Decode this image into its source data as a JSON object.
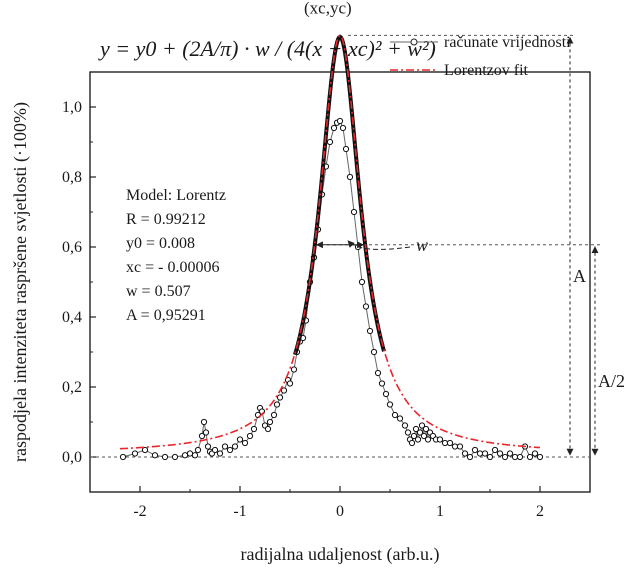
{
  "chart_data": {
    "type": "scatter",
    "formula": "y = y0 + (2A/π) · w / (4(x − xc)² + w²)",
    "xlabel": "radijalna udaljenost (arb.u.)",
    "ylabel": "raspodjela intenziteta raspršene svjetlosti (·100%)",
    "xlim": [
      -2.5,
      2.5
    ],
    "ylim": [
      -0.1,
      1.1
    ],
    "x_ticks": [
      "-2",
      "-1",
      "0",
      "1",
      "2"
    ],
    "y_ticks": [
      "0,0",
      "0,2",
      "0,4",
      "0,6",
      "0,8",
      "1,0"
    ],
    "legend": {
      "position": "top-right",
      "entries": [
        "računate vrijednosti",
        "Lorentzov fit"
      ]
    },
    "model_box": {
      "title": "Model: Lorentz",
      "R": "R = 0.99212",
      "y0": "y0 = 0.008",
      "xc": "xc = - 0.00006",
      "w": "w = 0.507",
      "A": "A = 0,95291"
    },
    "fit": {
      "y0": 0.008,
      "xc": -6e-05,
      "w": 0.507,
      "A": 0.95291
    },
    "annotations": {
      "peak": "(xc,yc)",
      "width": "w",
      "amplitude": "A",
      "half_amplitude": "A/2"
    },
    "series": [
      {
        "name": "računate vrijednosti",
        "color": "#333333",
        "x": [
          -2.17,
          -2.05,
          -1.95,
          -1.85,
          -1.75,
          -1.65,
          -1.55,
          -1.5,
          -1.45,
          -1.42,
          -1.38,
          -1.36,
          -1.34,
          -1.32,
          -1.3,
          -1.28,
          -1.25,
          -1.2,
          -1.15,
          -1.1,
          -1.05,
          -1.0,
          -0.95,
          -0.9,
          -0.86,
          -0.82,
          -0.8,
          -0.78,
          -0.75,
          -0.72,
          -0.7,
          -0.66,
          -0.63,
          -0.6,
          -0.56,
          -0.52,
          -0.5,
          -0.46,
          -0.43,
          -0.4,
          -0.37,
          -0.34,
          -0.3,
          -0.26,
          -0.22,
          -0.18,
          -0.14,
          -0.1,
          -0.06,
          -0.03,
          0.0,
          0.03,
          0.06,
          0.1,
          0.14,
          0.18,
          0.22,
          0.26,
          0.3,
          0.34,
          0.38,
          0.42,
          0.46,
          0.5,
          0.55,
          0.6,
          0.65,
          0.68,
          0.7,
          0.72,
          0.74,
          0.76,
          0.78,
          0.8,
          0.82,
          0.84,
          0.86,
          0.88,
          0.9,
          0.93,
          0.96,
          1.0,
          1.05,
          1.1,
          1.15,
          1.2,
          1.25,
          1.3,
          1.35,
          1.4,
          1.45,
          1.5,
          1.55,
          1.6,
          1.65,
          1.7,
          1.75,
          1.8,
          1.85,
          1.9,
          1.95,
          2.0
        ],
        "y": [
          0.0,
          0.01,
          0.02,
          0.005,
          0.0,
          0.0,
          0.005,
          0.01,
          0.005,
          0.02,
          0.06,
          0.1,
          0.07,
          0.03,
          0.015,
          0.01,
          0.02,
          0.01,
          0.03,
          0.02,
          0.03,
          0.05,
          0.04,
          0.06,
          0.08,
          0.12,
          0.14,
          0.13,
          0.09,
          0.08,
          0.1,
          0.12,
          0.15,
          0.17,
          0.19,
          0.22,
          0.21,
          0.25,
          0.3,
          0.33,
          0.34,
          0.39,
          0.5,
          0.57,
          0.65,
          0.75,
          0.83,
          0.9,
          0.94,
          0.955,
          0.96,
          0.94,
          0.88,
          0.8,
          0.7,
          0.6,
          0.5,
          0.43,
          0.36,
          0.3,
          0.24,
          0.21,
          0.18,
          0.15,
          0.12,
          0.11,
          0.09,
          0.07,
          0.05,
          0.04,
          0.06,
          0.08,
          0.05,
          0.07,
          0.09,
          0.06,
          0.08,
          0.05,
          0.07,
          0.06,
          0.05,
          0.05,
          0.04,
          0.04,
          0.03,
          0.03,
          0.01,
          0.0,
          0.02,
          0.01,
          0.01,
          0.0,
          0.02,
          0.01,
          0.0,
          0.01,
          0.0,
          0.0,
          0.03,
          0.0,
          0.01,
          0.0
        ]
      },
      {
        "name": "Lorentzov fit",
        "color": "#e8262b"
      }
    ]
  }
}
